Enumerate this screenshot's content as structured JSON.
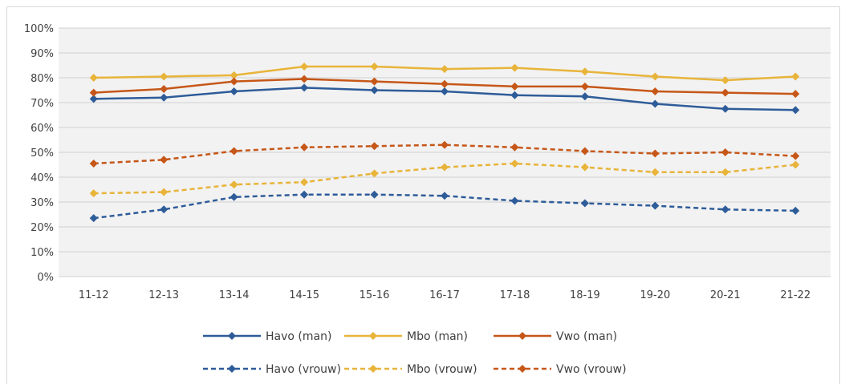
{
  "chart_data": {
    "type": "line",
    "title": "",
    "xlabel": "",
    "ylabel": "",
    "categories": [
      "11-12",
      "12-13",
      "13-14",
      "14-15",
      "15-16",
      "16-17",
      "17-18",
      "18-19",
      "19-20",
      "20-21",
      "21-22"
    ],
    "ylim": [
      0,
      100
    ],
    "yticks": [
      "0%",
      "10%",
      "20%",
      "30%",
      "40%",
      "50%",
      "60%",
      "70%",
      "80%",
      "90%",
      "100%"
    ],
    "grid": true,
    "plot_background": "#f2f2f2",
    "legend_position": "bottom",
    "series": [
      {
        "name": "Havo (man)",
        "color": "#2e5c99",
        "dash": false,
        "values": [
          71.5,
          72,
          74.5,
          76,
          75,
          74.5,
          73,
          72.5,
          69.5,
          67.5,
          67
        ]
      },
      {
        "name": "Mbo (man)",
        "color": "#e8b43a",
        "dash": false,
        "values": [
          80,
          80.5,
          81,
          84.5,
          84.5,
          83.5,
          84,
          82.5,
          80.5,
          79,
          80.5
        ]
      },
      {
        "name": "Vwo (man)",
        "color": "#c65718",
        "dash": false,
        "values": [
          74,
          75.5,
          78.5,
          79.5,
          78.5,
          77.5,
          76.5,
          76.5,
          74.5,
          74,
          73.5
        ]
      },
      {
        "name": "Havo (vrouw)",
        "color": "#2e5c99",
        "dash": true,
        "values": [
          23.5,
          27,
          32,
          33,
          33,
          32.5,
          30.5,
          29.5,
          28.5,
          27,
          26.5
        ]
      },
      {
        "name": "Mbo (vrouw)",
        "color": "#e8b43a",
        "dash": true,
        "values": [
          33.5,
          34,
          37,
          38,
          41.5,
          44,
          45.5,
          44,
          42,
          42,
          45
        ]
      },
      {
        "name": "Vwo (vrouw)",
        "color": "#c65718",
        "dash": true,
        "values": [
          45.5,
          47,
          50.5,
          52,
          52.5,
          53,
          52,
          50.5,
          49.5,
          50,
          48.5
        ]
      }
    ]
  }
}
